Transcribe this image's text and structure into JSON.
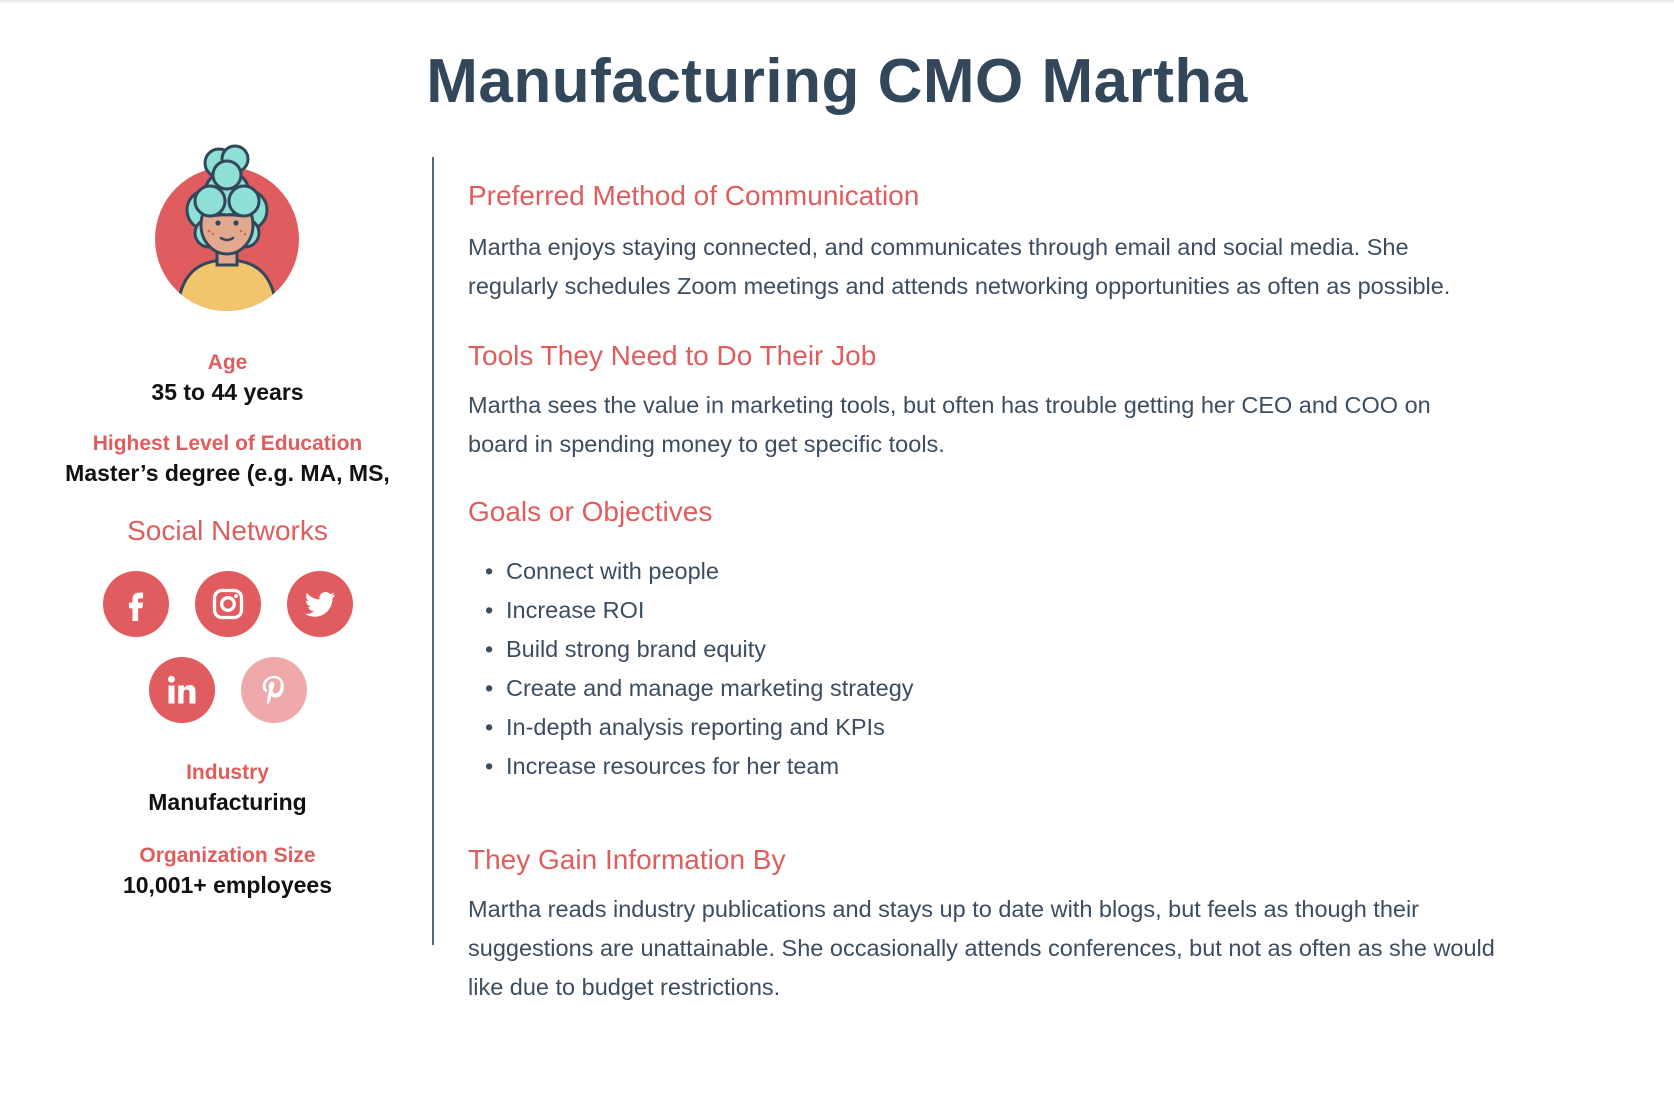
{
  "title": "Manufacturing CMO Martha",
  "sidebar": {
    "age_label": "Age",
    "age_value": "35 to 44 years",
    "education_label": "Highest Level of Education",
    "education_value": "Master’s degree (e.g. MA, MS,",
    "social_title": "Social Networks",
    "social_networks": [
      {
        "name": "facebook",
        "icon": "facebook-icon",
        "active": true
      },
      {
        "name": "instagram",
        "icon": "instagram-icon",
        "active": true
      },
      {
        "name": "twitter",
        "icon": "twitter-icon",
        "active": true
      },
      {
        "name": "linkedin",
        "icon": "linkedin-icon",
        "active": true
      },
      {
        "name": "pinterest",
        "icon": "pinterest-icon",
        "active": false
      }
    ],
    "industry_label": "Industry",
    "industry_value": "Manufacturing",
    "org_size_label": "Organization Size",
    "org_size_value": "10,001+ employees"
  },
  "sections": {
    "communication": {
      "heading": "Preferred Method of Communication",
      "lines": [
        "Martha enjoys staying connected, and communicates through email and social media. She",
        "regularly schedules Zoom meetings and attends networking opportunities as often as possible."
      ]
    },
    "tools": {
      "heading": "Tools They Need to Do Their Job",
      "lines": [
        "Martha sees the value in marketing tools, but often has trouble getting her CEO and COO on",
        "board in spending money to get specific tools."
      ]
    },
    "goals": {
      "heading": "Goals or Objectives",
      "bullet": "•",
      "items": [
        "Connect with people",
        "Increase ROI",
        "Build strong brand equity",
        "Create and manage marketing strategy",
        "In-depth analysis reporting and KPIs",
        "Increase resources for her team"
      ]
    },
    "information": {
      "heading": "They Gain Information By",
      "lines": [
        "Martha reads industry publications and stays up to date with blogs, but feels as though their",
        "suggestions are unattainable. She occasionally attends conferences, but not as often as she would",
        "like due to budget restrictions."
      ]
    }
  },
  "colors": {
    "title": "#33475b",
    "accent": "#e05d5d",
    "body_text": "#3d4d60",
    "social_active": "#e15c5f",
    "social_inactive": "#f0a9ab",
    "divider": "#55657a"
  }
}
